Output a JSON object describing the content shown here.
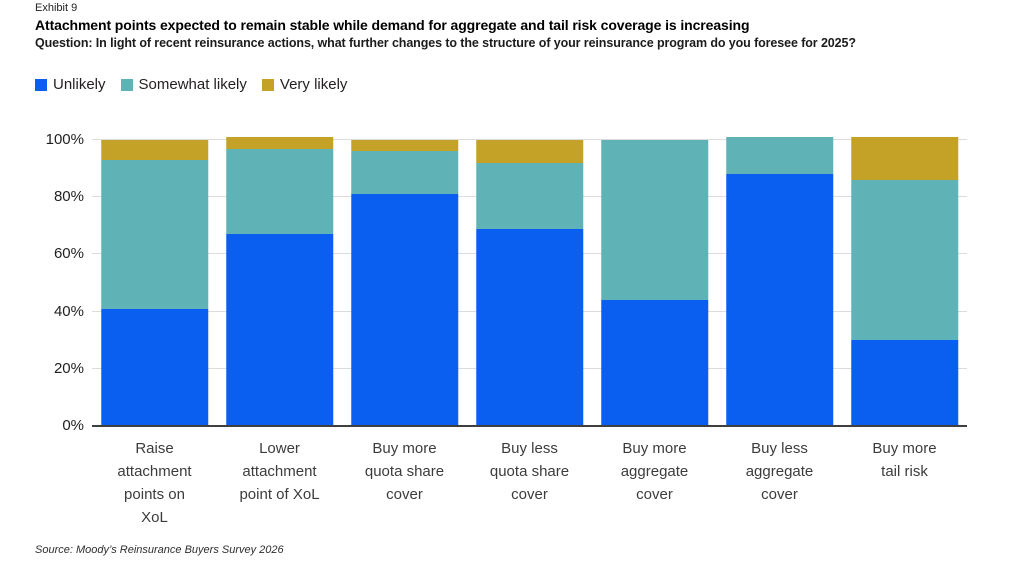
{
  "header": {
    "exhibit": "Exhibit 9",
    "title": "Attachment points expected to remain stable while demand for aggregate and tail risk coverage is increasing",
    "question": "Question: In light of recent reinsurance actions, what further changes to the structure of your reinsurance program do you foresee for 2025?"
  },
  "source": "Source: Moody’s Reinsurance Buyers Survey 2026",
  "colors": {
    "unlikely_blue": "#0A5EF0",
    "somewhat_likely_teal": "#5FB2B5",
    "very_likely_gold": "#C4A227",
    "gridline": "#dcdcdc",
    "axis": "#3f3f3f"
  },
  "chart_data": {
    "type": "bar",
    "subtype": "stacked-percent",
    "title": "Attachment points expected to remain stable while demand for aggregate and tail risk coverage is increasing",
    "xlabel": "",
    "ylabel": "",
    "ylim": [
      0,
      100
    ],
    "yticks": [
      "0%",
      "20%",
      "40%",
      "60%",
      "80%",
      "100%"
    ],
    "grid": true,
    "legend_position": "top-left",
    "categories": [
      "Raise attachment points on XoL",
      "Lower attachment point of XoL",
      "Buy more quota share cover",
      "Buy less quota share cover",
      "Buy more aggregate cover",
      "Buy less aggregate cover",
      "Buy more tail risk"
    ],
    "category_lines": [
      [
        "Raise",
        "attachment",
        "points on",
        "XoL"
      ],
      [
        "Lower",
        "attachment",
        "point of XoL"
      ],
      [
        "Buy more",
        "quota share",
        "cover"
      ],
      [
        "Buy less",
        "quota share",
        "cover"
      ],
      [
        "Buy more",
        "aggregate",
        "cover"
      ],
      [
        "Buy less",
        "aggregate",
        "cover"
      ],
      [
        "Buy more",
        "tail risk"
      ]
    ],
    "series": [
      {
        "name": "Unlikely",
        "color": "#0A5EF0",
        "values": [
          41,
          67,
          81,
          69,
          44,
          88,
          30
        ]
      },
      {
        "name": "Somewhat likely",
        "color": "#5FB2B5",
        "values": [
          52,
          30,
          15,
          23,
          56,
          13,
          56
        ]
      },
      {
        "name": "Very likely",
        "color": "#C4A227",
        "values": [
          7,
          4,
          4,
          8,
          0,
          0,
          15
        ]
      }
    ],
    "stack_totals": [
      100,
      101,
      100,
      100,
      100,
      101,
      101
    ]
  }
}
